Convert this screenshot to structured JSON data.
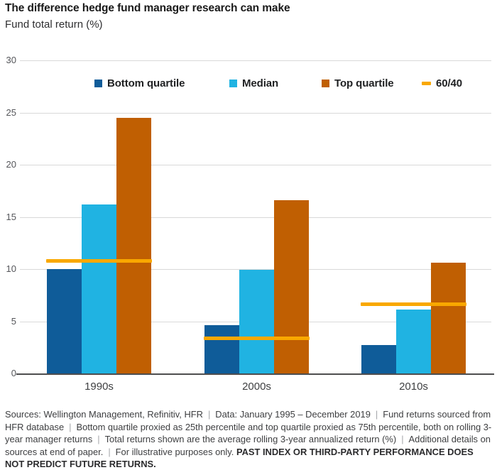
{
  "chart_data": {
    "type": "bar",
    "title": "The difference hedge fund manager research can make",
    "subtitle": "Fund total return (%)",
    "categories": [
      "1990s",
      "2000s",
      "2010s"
    ],
    "series": [
      {
        "name": "Bottom quartile",
        "color": "#0f5c99",
        "values": [
          10.0,
          4.6,
          2.7
        ]
      },
      {
        "name": "Median",
        "color": "#20b3e2",
        "values": [
          16.2,
          9.9,
          6.1
        ]
      },
      {
        "name": "Top quartile",
        "color": "#c05f02",
        "values": [
          24.5,
          16.6,
          10.6
        ]
      }
    ],
    "overlay_line": {
      "name": "60/40",
      "color": "#f9a800",
      "values": [
        10.8,
        3.4,
        6.7
      ]
    },
    "ylim": [
      0,
      30
    ],
    "yticks": [
      0,
      5,
      10,
      15,
      20,
      25,
      30
    ],
    "grid": "horizontal",
    "legend_position": "top"
  },
  "footer": {
    "separator": "|",
    "segments": [
      {
        "text": "Sources: Wellington Management, Refinitiv, HFR",
        "bold": false,
        "sep_after": true
      },
      {
        "text": "Data: January 1995 – December 2019",
        "bold": false,
        "sep_after": true
      },
      {
        "text": "Fund returns sourced from HFR database",
        "bold": false,
        "sep_after": true
      },
      {
        "text": "Bottom quartile proxied as 25th percentile and top quartile proxied as 75th percentile, both on rolling 3-year manager returns",
        "bold": false,
        "sep_after": true
      },
      {
        "text": "Total returns shown are the average rolling 3-year annualized return (%)",
        "bold": false,
        "sep_after": true
      },
      {
        "text": "Additional details on sources at end of paper.",
        "bold": false,
        "sep_after": true
      },
      {
        "text": "For illustrative purposes only. ",
        "bold": false,
        "sep_after": false
      },
      {
        "text": "PAST INDEX OR THIRD-PARTY PERFORMANCE DOES NOT PREDICT FUTURE RETURNS.",
        "bold": true,
        "sep_after": false
      }
    ]
  }
}
